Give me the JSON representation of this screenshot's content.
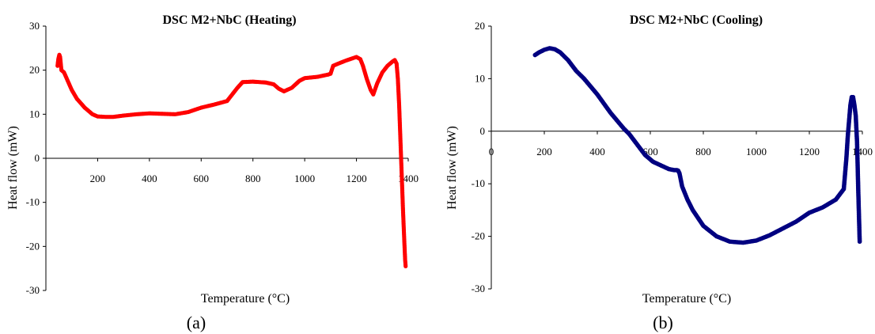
{
  "chart_data": [
    {
      "type": "line",
      "title": "DSC M2+NbC (Heating)",
      "xlabel": "Temperature (°C)",
      "ylabel": "Heat flow (mW)",
      "panel_label": "(a)",
      "xlim": [
        0,
        1400
      ],
      "ylim": [
        -30,
        30
      ],
      "xticks": [
        "200",
        "400",
        "600",
        "800",
        "1000",
        "1200",
        "1400"
      ],
      "yticks": [
        "30",
        "20",
        "10",
        "0",
        "-10",
        "-20",
        "-30"
      ],
      "grid": false,
      "color": "#ff0000",
      "x": [
        45,
        48,
        52,
        55,
        60,
        70,
        85,
        100,
        120,
        150,
        180,
        200,
        230,
        260,
        300,
        350,
        400,
        450,
        500,
        550,
        600,
        650,
        700,
        740,
        760,
        800,
        850,
        880,
        900,
        920,
        950,
        980,
        1000,
        1050,
        1090,
        1100,
        1110,
        1130,
        1160,
        1190,
        1200,
        1215,
        1225,
        1240,
        1255,
        1265,
        1280,
        1300,
        1320,
        1340,
        1348,
        1355,
        1360,
        1365,
        1370,
        1375,
        1380,
        1385,
        1388,
        1390
      ],
      "y": [
        21,
        22.5,
        23.5,
        23,
        20,
        19.5,
        17.5,
        15.5,
        13.5,
        11.5,
        10,
        9.5,
        9.4,
        9.4,
        9.7,
        10,
        10.2,
        10.1,
        10,
        10.5,
        11.5,
        12.2,
        13,
        16,
        17.3,
        17.4,
        17.2,
        16.8,
        15.8,
        15.2,
        16,
        17.6,
        18.2,
        18.5,
        19,
        19.2,
        21,
        21.5,
        22.2,
        22.8,
        23,
        22.5,
        21,
        18,
        15.5,
        14.5,
        17,
        19.5,
        21,
        22,
        22.3,
        21.5,
        18,
        12,
        4,
        -4,
        -12,
        -19,
        -23,
        -24.5
      ]
    },
    {
      "type": "line",
      "title": "DSC M2+NbC (Cooling)",
      "xlabel": "Temperature (°C)",
      "ylabel": "Heat flow (mW)",
      "panel_label": "(b)",
      "xlim": [
        0,
        1400
      ],
      "ylim": [
        -30,
        20
      ],
      "xticks": [
        "0",
        "200",
        "400",
        "600",
        "800",
        "1000",
        "1200",
        "1400"
      ],
      "yticks": [
        "20",
        "10",
        "0",
        "-10",
        "-20",
        "-30"
      ],
      "grid": false,
      "color": "#000080",
      "x": [
        165,
        180,
        200,
        220,
        240,
        260,
        290,
        320,
        350,
        400,
        450,
        500,
        520,
        550,
        580,
        610,
        640,
        670,
        690,
        700,
        705,
        710,
        720,
        740,
        760,
        800,
        850,
        900,
        950,
        1000,
        1050,
        1100,
        1150,
        1200,
        1250,
        1300,
        1330,
        1340,
        1345,
        1350,
        1355,
        1360,
        1365,
        1370,
        1375,
        1380,
        1385,
        1390
      ],
      "y": [
        14.5,
        15,
        15.5,
        15.8,
        15.6,
        15,
        13.5,
        11.5,
        10,
        7,
        3.5,
        0.5,
        -0.5,
        -2.5,
        -4.5,
        -5.8,
        -6.5,
        -7.2,
        -7.4,
        -7.4,
        -7.5,
        -8,
        -10.5,
        -13,
        -15,
        -18,
        -20,
        -21,
        -21.2,
        -20.8,
        -19.8,
        -18.5,
        -17.2,
        -15.5,
        -14.5,
        -13,
        -11,
        -5,
        -1,
        2,
        5,
        6.5,
        6.5,
        5,
        3,
        -2,
        -12,
        -21
      ]
    }
  ]
}
